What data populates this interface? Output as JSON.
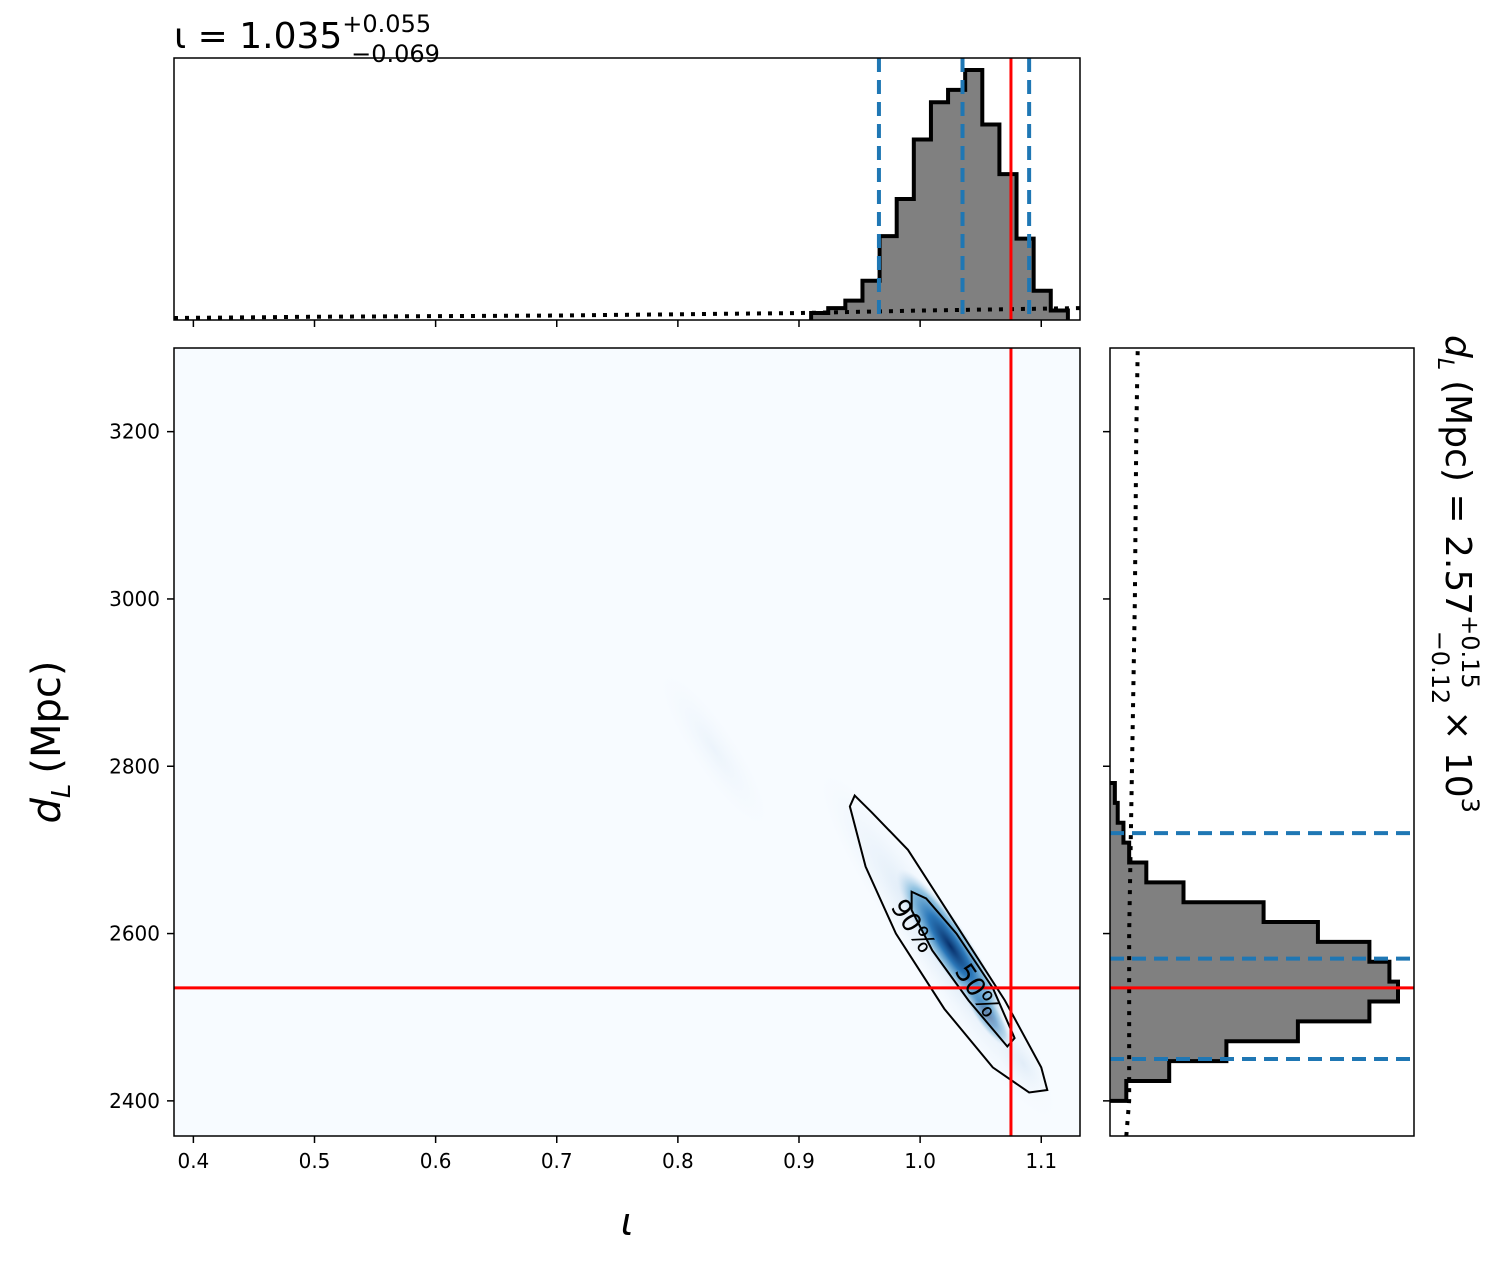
{
  "chart_data": [
    {
      "type": "histogram",
      "panel": "top-marginal",
      "title_main": "ι = 1.035",
      "title_sup": "+0.055",
      "title_sub": "−0.069",
      "xlim": [
        0.384,
        1.132
      ],
      "bins": {
        "x0": 0.91,
        "x1": 1.122,
        "counts": [
          0.02,
          0.04,
          0.07,
          0.15,
          0.33,
          0.48,
          0.72,
          0.87,
          0.92,
          1.0,
          0.78,
          0.58,
          0.32,
          0.11,
          0.03
        ]
      },
      "prior_dotted": {
        "x": [
          0.384,
          0.5,
          0.7,
          0.9,
          1.0,
          1.132
        ],
        "y": [
          0.0,
          0.005,
          0.01,
          0.02,
          0.03,
          0.04
        ]
      },
      "quantiles": [
        0.966,
        1.035,
        1.09
      ],
      "truth": 1.075
    },
    {
      "type": "heatmap",
      "panel": "joint",
      "xlabel": "ι",
      "ylabel": "d",
      "ylabel_sub": "L",
      "ylabel_unit": "(Mpc)",
      "xlim": [
        0.384,
        1.132
      ],
      "ylim": [
        2358,
        3300
      ],
      "xticks": [
        "0.4",
        "0.5",
        "0.6",
        "0.7",
        "0.8",
        "0.9",
        "1.0",
        "1.1"
      ],
      "xtick_values": [
        0.4,
        0.5,
        0.6,
        0.7,
        0.8,
        0.9,
        1.0,
        1.1
      ],
      "yticks": [
        "2400",
        "2600",
        "2800",
        "3000",
        "3200"
      ],
      "ytick_values": [
        2400,
        2600,
        2800,
        3000,
        3200
      ],
      "contour_labels": [
        "90%",
        "50%"
      ],
      "contour_90": [
        [
          0.946,
          2765
        ],
        [
          0.96,
          2745
        ],
        [
          0.99,
          2700
        ],
        [
          1.03,
          2610
        ],
        [
          1.07,
          2520
        ],
        [
          1.1,
          2440
        ],
        [
          1.105,
          2413
        ],
        [
          1.09,
          2410
        ],
        [
          1.06,
          2440
        ],
        [
          1.02,
          2510
        ],
        [
          0.98,
          2600
        ],
        [
          0.955,
          2680
        ],
        [
          0.942,
          2752
        ]
      ],
      "contour_50": [
        [
          0.993,
          2650
        ],
        [
          1.005,
          2642
        ],
        [
          1.03,
          2600
        ],
        [
          1.06,
          2535
        ],
        [
          1.078,
          2475
        ],
        [
          1.072,
          2465
        ],
        [
          1.04,
          2520
        ],
        [
          1.01,
          2580
        ],
        [
          0.993,
          2628
        ]
      ],
      "core_ellipse": {
        "cx": 1.025,
        "cy": 2585,
        "rx_units": 0.028,
        "ry_units": 70
      },
      "truth": {
        "x": 1.075,
        "y": 2535
      },
      "colors": {
        "density": "#08519c",
        "background": "#f7fbff",
        "truth": "#ff0000",
        "quantile": "#1f77b4",
        "hist": "#808080"
      }
    },
    {
      "type": "histogram",
      "panel": "right-marginal",
      "orientation": "horizontal",
      "title_main": "d",
      "title_sub_l": "L",
      "title_rest": "(Mpc) = 2.57",
      "title_sup": "+0.15",
      "title_sub": "−0.12",
      "title_tail": "× 10",
      "title_exp": "3",
      "ylim": [
        2358,
        3300
      ],
      "bins": {
        "y0": 2400,
        "y1": 2780,
        "counts": [
          0.05,
          0.2,
          0.4,
          0.65,
          0.9,
          1.0,
          0.97,
          0.9,
          0.72,
          0.53,
          0.25,
          0.12,
          0.06,
          0.04,
          0.02,
          0.01
        ]
      },
      "prior_dotted": {
        "y": [
          2358,
          2400,
          2600,
          2800,
          3000,
          3200,
          3300
        ],
        "x": [
          0.05,
          0.06,
          0.06,
          0.07,
          0.08,
          0.085,
          0.09
        ]
      },
      "quantiles": [
        2450,
        2570,
        2720
      ],
      "truth": 2535
    }
  ]
}
